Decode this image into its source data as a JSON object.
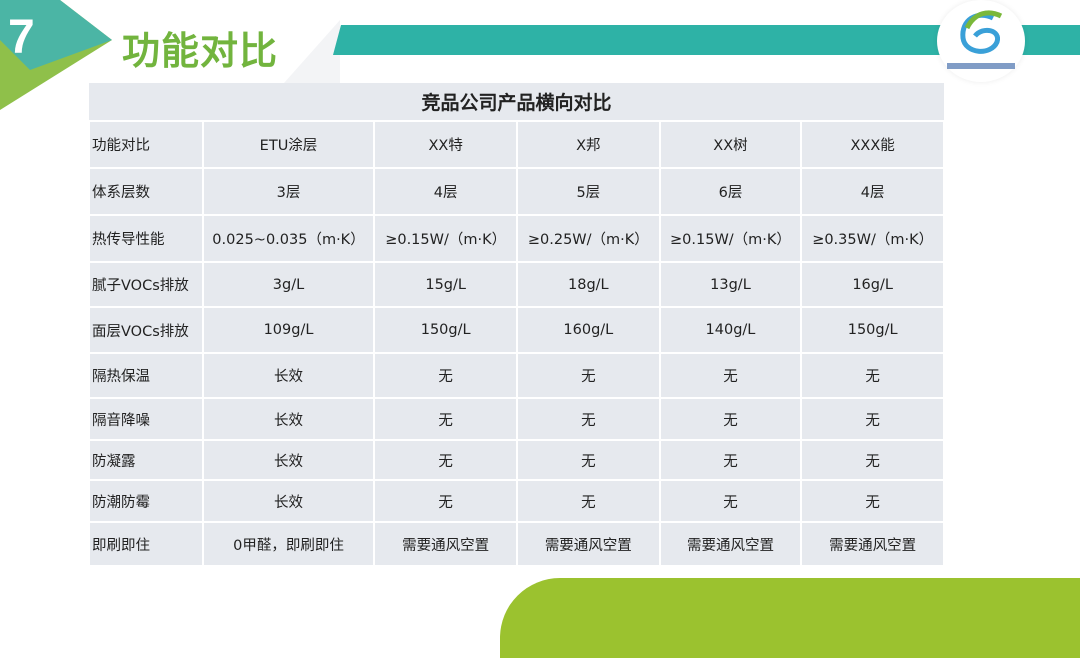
{
  "slide": {
    "number": "7",
    "title": "功能对比",
    "colors": {
      "teal": "#2eb2a6",
      "green": "#72b43e",
      "lime": "#9bc22f"
    },
    "logo": "company-logo"
  },
  "table": {
    "caption": "竞品公司产品横向对比",
    "rows": [
      [
        "功能对比",
        "ETU涂层",
        "XX特",
        "X邦",
        "XX树",
        "XXX能"
      ],
      [
        "体系层数",
        "3层",
        "4层",
        "5层",
        "6层",
        "4层"
      ],
      [
        "热传导性能",
        "0.025~0.035（m·K）",
        "≥0.15W/（m·K）",
        "≥0.25W/（m·K）",
        "≥0.15W/（m·K）",
        "≥0.35W/（m·K）"
      ],
      [
        "腻子VOCs排放",
        "3g/L",
        "15g/L",
        "18g/L",
        "13g/L",
        "16g/L"
      ],
      [
        "面层VOCs排放",
        "109g/L",
        "150g/L",
        "160g/L",
        "140g/L",
        "150g/L"
      ],
      [
        "隔热保温",
        "长效",
        "无",
        "无",
        "无",
        "无"
      ],
      [
        "隔音降噪",
        "长效",
        "无",
        "无",
        "无",
        "无"
      ],
      [
        "防凝露",
        "长效",
        "无",
        "无",
        "无",
        "无"
      ],
      [
        "防潮防霉",
        "长效",
        "无",
        "无",
        "无",
        "无"
      ],
      [
        "即刷即住",
        "0甲醛，即刷即住",
        "需要通风空置",
        "需要通风空置",
        "需要通风空置",
        "需要通风空置"
      ]
    ]
  }
}
